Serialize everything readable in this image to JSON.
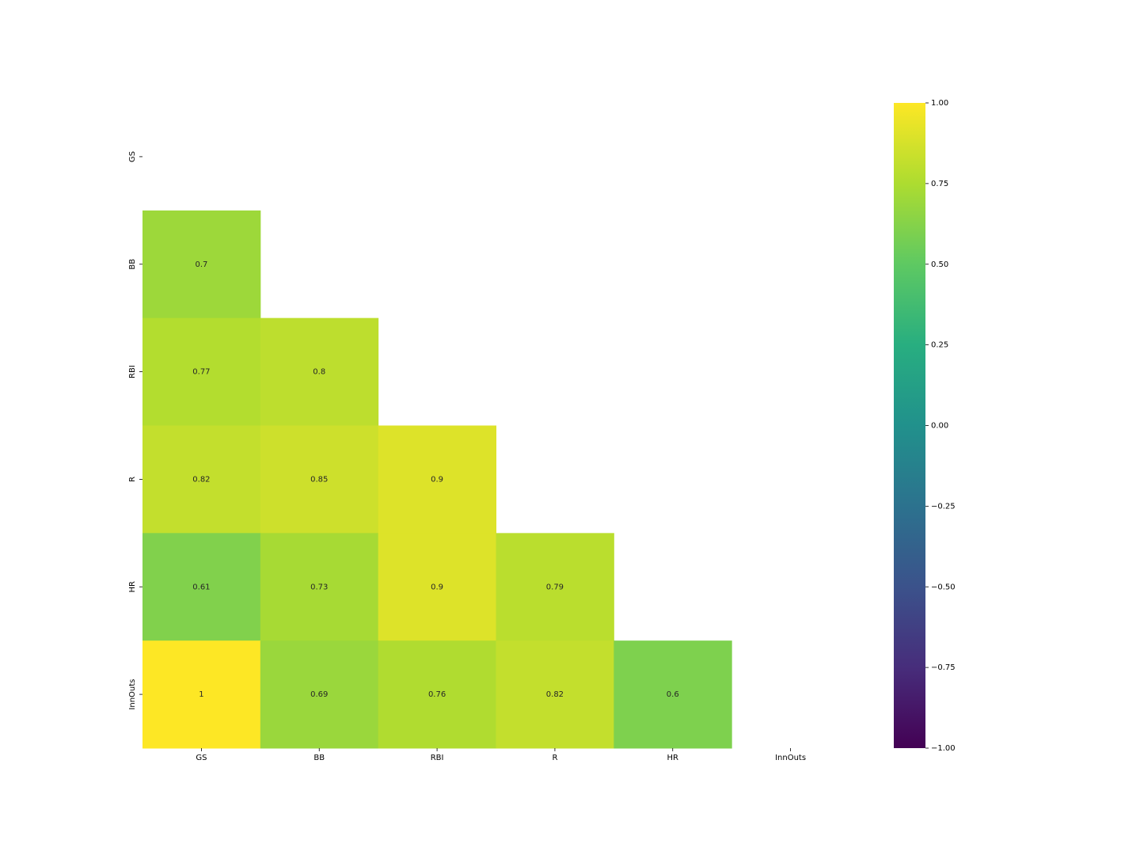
{
  "chart_data": {
    "type": "heatmap",
    "colormap": "viridis",
    "x": [
      "GS",
      "BB",
      "RBI",
      "R",
      "HR",
      "InnOuts"
    ],
    "y": [
      "GS",
      "BB",
      "RBI",
      "R",
      "HR",
      "InnOuts"
    ],
    "z": [
      [
        null,
        null,
        null,
        null,
        null,
        null
      ],
      [
        0.7,
        null,
        null,
        null,
        null,
        null
      ],
      [
        0.77,
        0.8,
        null,
        null,
        null,
        null
      ],
      [
        0.82,
        0.85,
        0.9,
        null,
        null,
        null
      ],
      [
        0.61,
        0.73,
        0.9,
        0.79,
        null,
        null
      ],
      [
        1,
        0.69,
        0.76,
        0.82,
        0.6,
        null
      ]
    ],
    "zlim": [
      -1,
      1
    ],
    "zticks": [
      {
        "value": -1,
        "label": "−1.00"
      },
      {
        "value": -0.75,
        "label": "−0.75"
      },
      {
        "value": -0.5,
        "label": "−0.50"
      },
      {
        "value": -0.25,
        "label": "−0.25"
      },
      {
        "value": 0,
        "label": "0.00"
      },
      {
        "value": 0.25,
        "label": "0.25"
      },
      {
        "value": 0.5,
        "label": "0.50"
      },
      {
        "value": 0.75,
        "label": "0.75"
      },
      {
        "value": 1,
        "label": "1.00"
      }
    ]
  }
}
